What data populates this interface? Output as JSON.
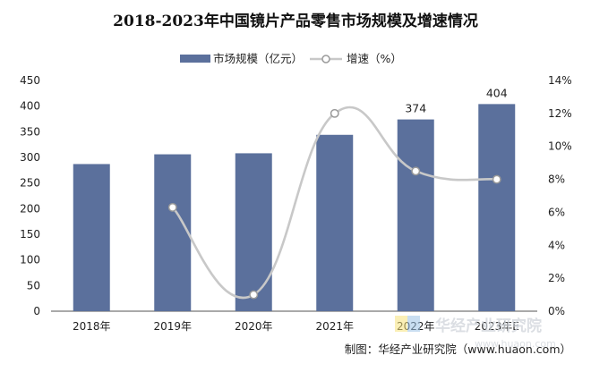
{
  "chart_data": {
    "type": "bar",
    "title": "2018-2023年中国镜片产品零售市场规模及增速情况",
    "categories": [
      "2018年",
      "2019年",
      "2020年",
      "2021年",
      "2022年",
      "2023年E"
    ],
    "series": [
      {
        "name": "市场规模（亿元）",
        "type": "bar",
        "axis": "left",
        "color": "#5b709c",
        "values": [
          287,
          306,
          308,
          344,
          374,
          404
        ]
      },
      {
        "name": "增速（%）",
        "type": "line",
        "axis": "right",
        "color": "#c8c8c8",
        "smooth": true,
        "values": [
          null,
          6.3,
          1.0,
          12.0,
          8.5,
          8.0
        ]
      }
    ],
    "data_labels": {
      "4": "374",
      "5": "404"
    },
    "yleft": {
      "lim": [
        0,
        450
      ],
      "ticks": [
        "0",
        "50",
        "100",
        "150",
        "200",
        "250",
        "300",
        "350",
        "400",
        "450"
      ]
    },
    "yright": {
      "lim": [
        0,
        14
      ],
      "ticks": [
        "0%",
        "2%",
        "4%",
        "6%",
        "8%",
        "10%",
        "12%",
        "14%"
      ]
    },
    "legend": {
      "position": "top"
    },
    "grid": false
  },
  "source_text": "制图：华经产业研究院（www.huaon.com）",
  "watermark": {
    "brand": "华经产业研究院",
    "url": "www.huaon.com"
  }
}
